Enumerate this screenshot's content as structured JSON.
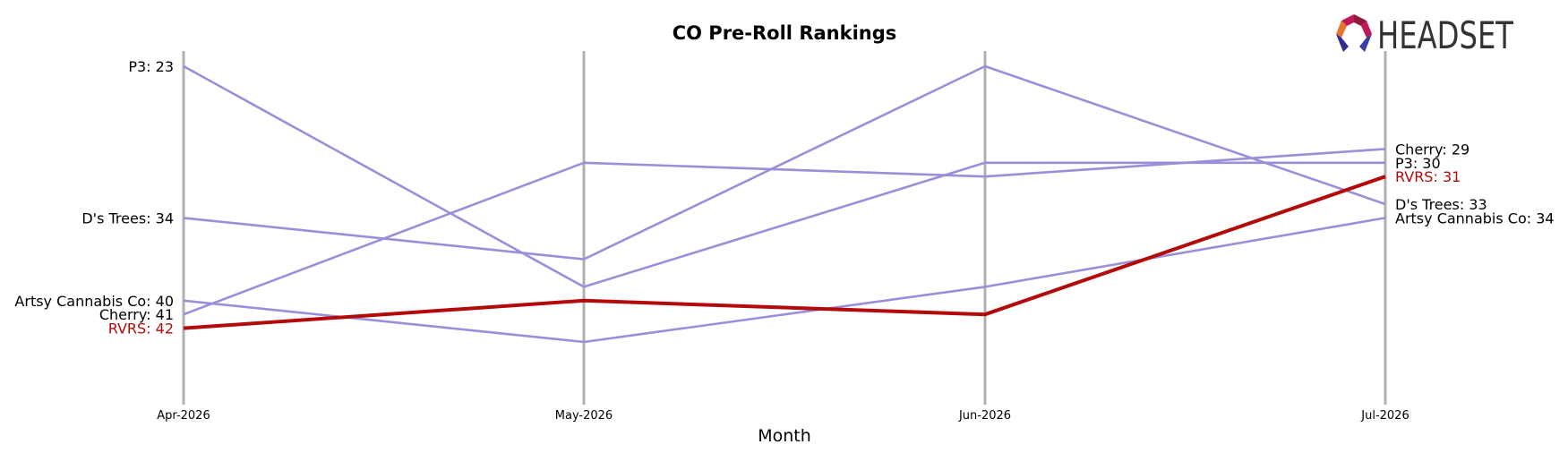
{
  "brand": {
    "name": "HEADSET",
    "colors": [
      "#e8742c",
      "#c2185b",
      "#8e1a3c",
      "#2c2f8f",
      "#3a3fa8",
      "#7b2b8f"
    ]
  },
  "chart_data": {
    "type": "line",
    "title": "CO Pre-Roll Rankings",
    "xlabel": "Month",
    "ylabel": "",
    "categories": [
      "Apr-2026",
      "May-2026",
      "Jun-2026",
      "Jul-2026"
    ],
    "y_inverted": true,
    "ylim": [
      45.6,
      21.8
    ],
    "grid": false,
    "highlight_series": "RVRS",
    "colors": {
      "default": "#9b8fd9",
      "highlight": "#b30a0a",
      "axis": "#b0b0b0"
    },
    "series": [
      {
        "name": "P3",
        "values": [
          23,
          39,
          30,
          30
        ],
        "first_label": "P3: 23",
        "last_label": "P3: 30"
      },
      {
        "name": "D's Trees",
        "values": [
          34,
          37,
          23,
          33
        ],
        "first_label": "D's Trees: 34",
        "last_label": "D's Trees: 33"
      },
      {
        "name": "Artsy Cannabis Co",
        "values": [
          40,
          43,
          39,
          34
        ],
        "first_label": "Artsy Cannabis Co: 40",
        "last_label": "Artsy Cannabis Co: 34"
      },
      {
        "name": "Cherry",
        "values": [
          41,
          30,
          31,
          29
        ],
        "first_label": "Cherry: 41",
        "last_label": "Cherry: 29"
      },
      {
        "name": "RVRS",
        "values": [
          42,
          40,
          41,
          31
        ],
        "first_label": "RVRS: 42",
        "last_label": "RVRS: 31"
      }
    ]
  }
}
